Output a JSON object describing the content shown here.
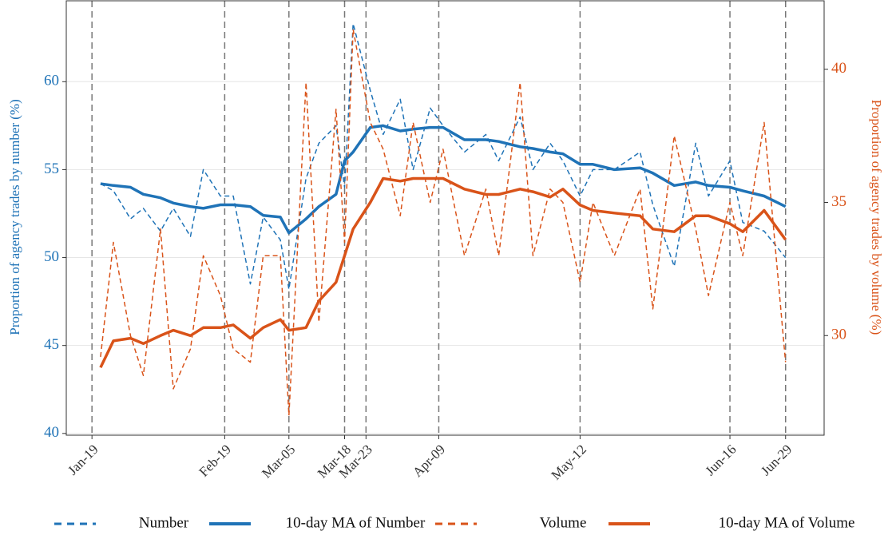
{
  "chart_data": {
    "type": "line",
    "ylabel": "Proportion of agency trades by number (%)",
    "y2label": "Proportion of agency trades by volume (%)",
    "x": [
      "Jan-21",
      "Jan-24",
      "Jan-28",
      "Jan-31",
      "Feb-04",
      "Feb-07",
      "Feb-11",
      "Feb-14",
      "Feb-18",
      "Feb-21",
      "Feb-25",
      "Feb-28",
      "Mar-03",
      "Mar-05",
      "Mar-09",
      "Mar-12",
      "Mar-16",
      "Mar-18",
      "Mar-20",
      "Mar-24",
      "Mar-27",
      "Mar-31",
      "Apr-03",
      "Apr-07",
      "Apr-10",
      "Apr-15",
      "Apr-20",
      "Apr-23",
      "Apr-28",
      "May-01",
      "May-05",
      "May-08",
      "May-12",
      "May-15",
      "May-20",
      "May-26",
      "May-29",
      "Jun-03",
      "Jun-08",
      "Jun-11",
      "Jun-16",
      "Jun-19",
      "Jun-24",
      "Jun-29"
    ],
    "xlim": [
      "Jan-13",
      "Jul-08"
    ],
    "xticks": [
      "Jan-19",
      "Feb-19",
      "Mar-05",
      "Mar-18",
      "Mar-23",
      "Apr-09",
      "May-12",
      "Jun-16",
      "Jun-29"
    ],
    "ylim": [
      39.9,
      64.6
    ],
    "yticks": [
      40,
      45,
      50,
      55,
      60
    ],
    "y2lim": [
      26.26,
      42.57
    ],
    "y2ticks": [
      30,
      35,
      40
    ],
    "grid": true,
    "legend": "bottom",
    "series": [
      {
        "name": "Number",
        "color": "#1f73b7",
        "style": "dashed",
        "axis": "y",
        "values": [
          54.2,
          53.8,
          52.2,
          52.8,
          51.5,
          52.8,
          51.2,
          55.0,
          53.5,
          53.5,
          48.5,
          52.3,
          51.0,
          48.2,
          54.5,
          56.5,
          57.5,
          54.0,
          63.3,
          59.5,
          57.0,
          59.0,
          55.0,
          58.5,
          57.5,
          56.0,
          57.0,
          55.5,
          58.0,
          55.0,
          56.5,
          55.5,
          53.5,
          55.0,
          55.0,
          56.0,
          53.0,
          49.5,
          56.5,
          53.5,
          55.5,
          52.0,
          51.5,
          50.0
        ]
      },
      {
        "name": "10-day MA of Number",
        "color": "#1f73b7",
        "style": "solid",
        "axis": "y",
        "values": [
          54.2,
          54.1,
          54.0,
          53.6,
          53.4,
          53.1,
          52.9,
          52.8,
          53.0,
          53.0,
          52.9,
          52.4,
          52.3,
          51.4,
          52.2,
          52.9,
          53.6,
          55.5,
          56.0,
          57.4,
          57.5,
          57.2,
          57.3,
          57.4,
          57.4,
          56.7,
          56.7,
          56.6,
          56.3,
          56.2,
          56.0,
          55.9,
          55.3,
          55.3,
          55.0,
          55.1,
          54.8,
          54.1,
          54.3,
          54.1,
          54.0,
          53.8,
          53.5,
          52.9
        ]
      },
      {
        "name": "Volume",
        "color": "#d95319",
        "style": "dashed",
        "axis": "y2",
        "values": [
          29.2,
          33.5,
          30.0,
          28.5,
          34.0,
          28.0,
          29.5,
          33.0,
          31.5,
          29.5,
          29.0,
          33.0,
          33.0,
          27.0,
          39.5,
          30.5,
          38.5,
          33.5,
          41.5,
          38.0,
          37.0,
          34.5,
          38.0,
          35.0,
          37.0,
          33.0,
          35.5,
          33.0,
          39.5,
          33.0,
          35.5,
          35.0,
          32.0,
          35.0,
          33.0,
          35.5,
          31.0,
          37.5,
          34.0,
          31.5,
          35.0,
          33.0,
          38.0,
          29.0
        ]
      },
      {
        "name": "10-day MA of Volume",
        "color": "#d95319",
        "style": "solid",
        "axis": "y2",
        "values": [
          28.8,
          29.8,
          29.9,
          29.7,
          30.0,
          30.2,
          30.0,
          30.3,
          30.3,
          30.4,
          29.9,
          30.3,
          30.6,
          30.2,
          30.3,
          31.3,
          32.0,
          33.0,
          34.0,
          35.0,
          35.9,
          35.8,
          35.9,
          35.9,
          35.9,
          35.5,
          35.3,
          35.3,
          35.5,
          35.4,
          35.2,
          35.5,
          34.9,
          34.7,
          34.6,
          34.5,
          34.0,
          33.9,
          34.5,
          34.5,
          34.2,
          33.9,
          34.7,
          33.6
        ]
      }
    ]
  }
}
